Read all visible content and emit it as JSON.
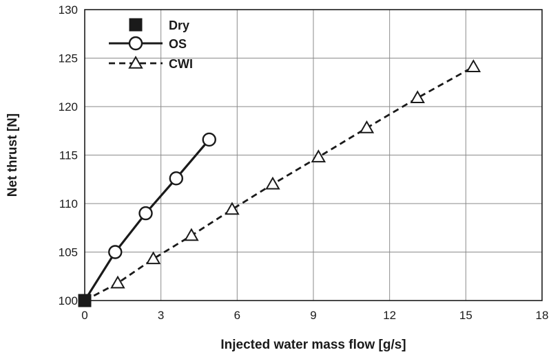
{
  "chart_data": {
    "type": "line",
    "xlabel": "Injected water mass flow [g/s]",
    "ylabel": "Net thrust [N]",
    "xlim": [
      0,
      18
    ],
    "ylim": [
      100,
      130
    ],
    "xticks": [
      0,
      3,
      6,
      9,
      12,
      15,
      18
    ],
    "yticks": [
      100,
      105,
      110,
      115,
      120,
      125,
      130
    ],
    "grid": true,
    "legend_position": "top-left",
    "series": [
      {
        "name": "Dry",
        "marker": "filled-square",
        "line": "none",
        "color": "#1a1a1a",
        "x": [
          0
        ],
        "y": [
          100
        ]
      },
      {
        "name": "OS",
        "marker": "open-circle",
        "line": "solid",
        "color": "#1a1a1a",
        "x": [
          0,
          1.2,
          2.4,
          3.6,
          4.9
        ],
        "y": [
          100,
          105,
          109,
          112.6,
          116.6
        ]
      },
      {
        "name": "CWI",
        "marker": "open-triangle",
        "line": "dashed",
        "color": "#1a1a1a",
        "x": [
          0,
          1.3,
          2.7,
          4.2,
          5.8,
          7.4,
          9.2,
          11.1,
          13.1,
          15.3
        ],
        "y": [
          100,
          101.8,
          104.3,
          106.7,
          109.4,
          112,
          114.8,
          117.8,
          120.9,
          124.1
        ]
      }
    ]
  }
}
